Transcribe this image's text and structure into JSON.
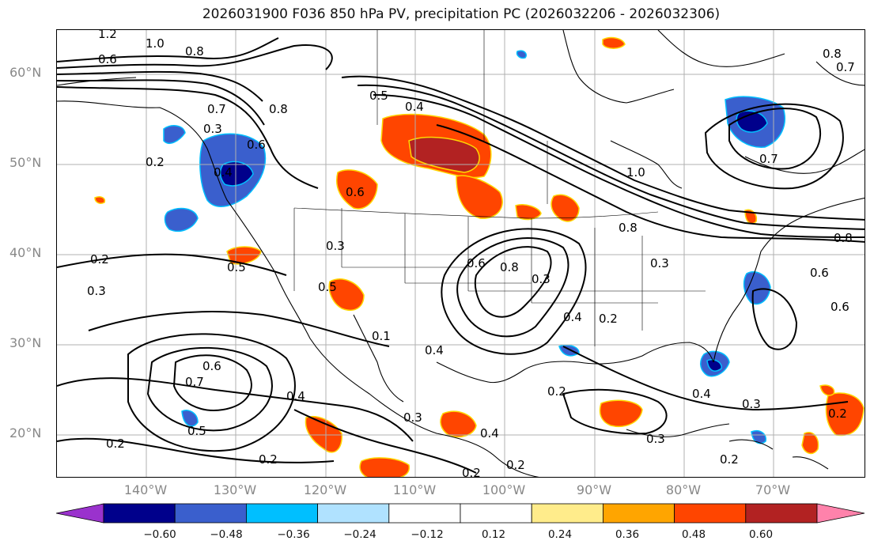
{
  "title": "2026031900 F036 850 hPa PV, precipitation PC (2026032206 - 2026032306)",
  "lat_labels": [
    "60°N",
    "50°N",
    "40°N",
    "30°N",
    "20°N"
  ],
  "lon_labels": [
    "140°W",
    "130°W",
    "120°W",
    "110°W",
    "100°W",
    "90°W",
    "80°W",
    "70°W"
  ],
  "colorbar": {
    "colors": [
      "#9a32cd",
      "#00008b",
      "#3a5fcd",
      "#00bfff",
      "#b0e2ff",
      "#ffffff",
      "#ffffff",
      "#ffec8b",
      "#ffa500",
      "#ff4500",
      "#b22222",
      "#ff82ab"
    ],
    "tick_labels": [
      "−0.60",
      "−0.48",
      "−0.36",
      "−0.24",
      "−0.12",
      "0.12",
      "0.24",
      "0.36",
      "0.48",
      "0.60"
    ]
  },
  "contour_labels": [
    "1.2",
    "1.0",
    "0.8",
    "0.6",
    "0.5",
    "0.4",
    "0.2",
    "0.3",
    "0.6",
    "0.8",
    "0.7",
    "0.5",
    "0.4",
    "0.3",
    "0.2",
    "0.5",
    "0.7",
    "0.6",
    "0.4",
    "0.3",
    "0.2",
    "0.1",
    "0.6",
    "0.8",
    "0.3",
    "0.4",
    "0.2",
    "0.6",
    "0.2",
    "0.4",
    "0.3",
    "0.2",
    "0.2",
    "0.5",
    "0.3",
    "0.4",
    "0.2",
    "1.0",
    "0.8",
    "0.3",
    "0.7",
    "0.6",
    "0.8",
    "0.7",
    "0.8",
    "0.6",
    "0.3",
    "0.2",
    "0.4",
    "0.2"
  ],
  "colors": {
    "contour": "#000000",
    "coast": "#000000",
    "grid": "#b0b0b0",
    "axis_label": "#888888"
  }
}
